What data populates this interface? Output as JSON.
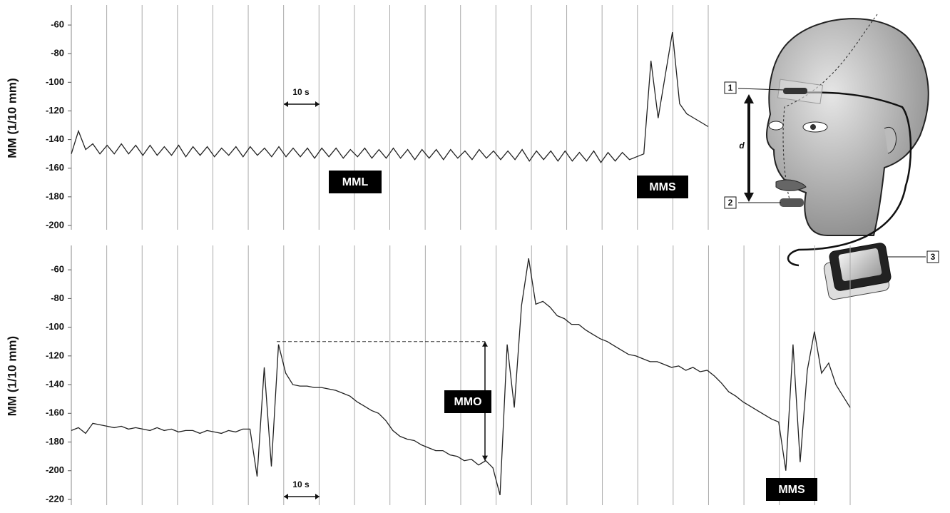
{
  "chart_data": [
    {
      "type": "line",
      "y_label": "MM (1/10 mm)",
      "color": "#222222",
      "ylim": [
        -202,
        -48
      ],
      "yticks": [
        -60,
        -80,
        -100,
        -120,
        -140,
        -160,
        -180,
        -200
      ],
      "grid": false,
      "annotations": [
        "10 s",
        "MML",
        "MMS"
      ],
      "values": [
        -150,
        -134,
        -147,
        -143,
        -150,
        -144,
        -150,
        -143,
        -150,
        -144,
        -151,
        -144,
        -151,
        -145,
        -151,
        -144,
        -152,
        -145,
        -151,
        -145,
        -152,
        -146,
        -151,
        -145,
        -152,
        -145,
        -151,
        -146,
        -152,
        -145,
        -152,
        -146,
        -152,
        -146,
        -153,
        -146,
        -152,
        -146,
        -153,
        -147,
        -152,
        -146,
        -153,
        -147,
        -153,
        -146,
        -153,
        -147,
        -154,
        -147,
        -153,
        -147,
        -154,
        -147,
        -153,
        -148,
        -154,
        -147,
        -153,
        -148,
        -154,
        -148,
        -154,
        -147,
        -155,
        -148,
        -154,
        -148,
        -155,
        -148,
        -155,
        -149,
        -155,
        -148,
        -156,
        -149,
        -155,
        -149,
        -154,
        -152,
        -150,
        -85,
        -125,
        -95,
        -65,
        -115,
        -122,
        -125,
        -128,
        -131
      ]
    },
    {
      "type": "line",
      "y_label": "MM (1/10 mm)",
      "color": "#222222",
      "ylim": [
        -223,
        -45
      ],
      "yticks": [
        -60,
        -80,
        -100,
        -120,
        -140,
        -160,
        -180,
        -200,
        -220
      ],
      "grid": false,
      "annotations": [
        "10 s",
        "MMO",
        "MMS"
      ],
      "values": [
        -172,
        -170,
        -174,
        -167,
        -168,
        -169,
        -170,
        -169,
        -171,
        -170,
        -171,
        -172,
        -170,
        -172,
        -171,
        -173,
        -172,
        -172,
        -174,
        -172,
        -173,
        -174,
        -172,
        -173,
        -171,
        -171,
        -204,
        -128,
        -197,
        -112,
        -132,
        -140,
        -141,
        -141,
        -142,
        -142,
        -143,
        -144,
        -146,
        -148,
        -152,
        -155,
        -158,
        -160,
        -165,
        -172,
        -176,
        -178,
        -179,
        -182,
        -184,
        -186,
        -186,
        -189,
        -190,
        -193,
        -192,
        -196,
        -193,
        -198,
        -217,
        -112,
        -156,
        -85,
        -52,
        -84,
        -82,
        -86,
        -92,
        -94,
        -98,
        -98,
        -102,
        -105,
        -108,
        -110,
        -113,
        -116,
        -119,
        -120,
        -122,
        -124,
        -124,
        -126,
        -128,
        -127,
        -130,
        -128,
        -131,
        -130,
        -134,
        -139,
        -145,
        -148,
        -152,
        -155,
        -158,
        -161,
        -164,
        -166,
        -200,
        -112,
        -194,
        -130,
        -103,
        -132,
        -125,
        -140,
        -148,
        -156
      ]
    }
  ],
  "illustration": {
    "markers": [
      "1",
      "2",
      "3"
    ],
    "distance": "d"
  }
}
